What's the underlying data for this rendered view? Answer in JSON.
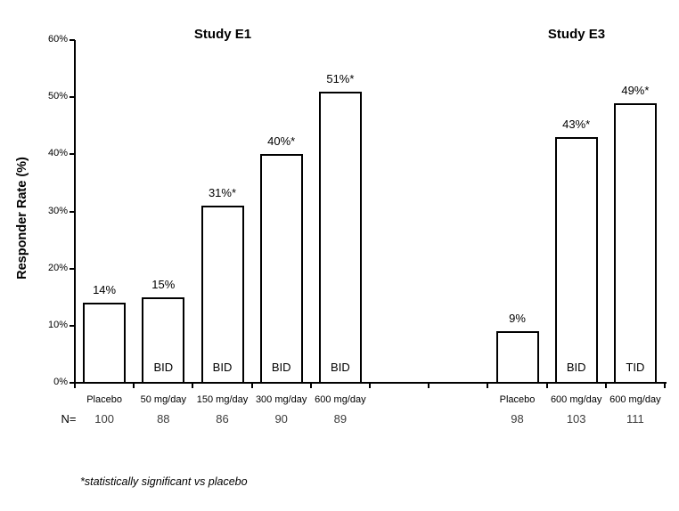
{
  "chart_data": {
    "type": "bar",
    "ylabel": "Responder Rate (%)",
    "ylim": [
      0,
      60
    ],
    "ytick_values": [
      0,
      10,
      20,
      30,
      40,
      50,
      60
    ],
    "ytick_labels": [
      "0%",
      "10%",
      "20%",
      "30%",
      "40%",
      "50%",
      "60%"
    ],
    "grid": "off",
    "legend_position": "none",
    "n_row_label": "N=",
    "footnote": "*statistically significant vs placebo",
    "total_slots": 10,
    "groups": [
      {
        "name": "Study E1",
        "start_slot": 0,
        "bars": [
          {
            "category": "Placebo",
            "value": 14,
            "value_label": "14%",
            "n": "100",
            "schedule": ""
          },
          {
            "category": "50 mg/day",
            "value": 15,
            "value_label": "15%",
            "n": "88",
            "schedule": "BID"
          },
          {
            "category": "150 mg/day",
            "value": 31,
            "value_label": "31%*",
            "n": "86",
            "schedule": "BID"
          },
          {
            "category": "300 mg/day",
            "value": 40,
            "value_label": "40%*",
            "n": "90",
            "schedule": "BID"
          },
          {
            "category": "600 mg/day",
            "value": 51,
            "value_label": "51%*",
            "n": "89",
            "schedule": "BID"
          }
        ]
      },
      {
        "name": "Study E3",
        "start_slot": 7,
        "bars": [
          {
            "category": "Placebo",
            "value": 9,
            "value_label": "9%",
            "n": "98",
            "schedule": ""
          },
          {
            "category": "600 mg/day",
            "value": 43,
            "value_label": "43%*",
            "n": "103",
            "schedule": "BID"
          },
          {
            "category": "600 mg/day",
            "value": 49,
            "value_label": "49%*",
            "n": "111",
            "schedule": "TID"
          }
        ]
      }
    ]
  },
  "colors": {
    "background": "#ffffff",
    "bar_fill": "#ffffff",
    "bar_border": "#000000",
    "axis": "#000000",
    "text": "#000000",
    "n_text": "#3d3d3d"
  }
}
